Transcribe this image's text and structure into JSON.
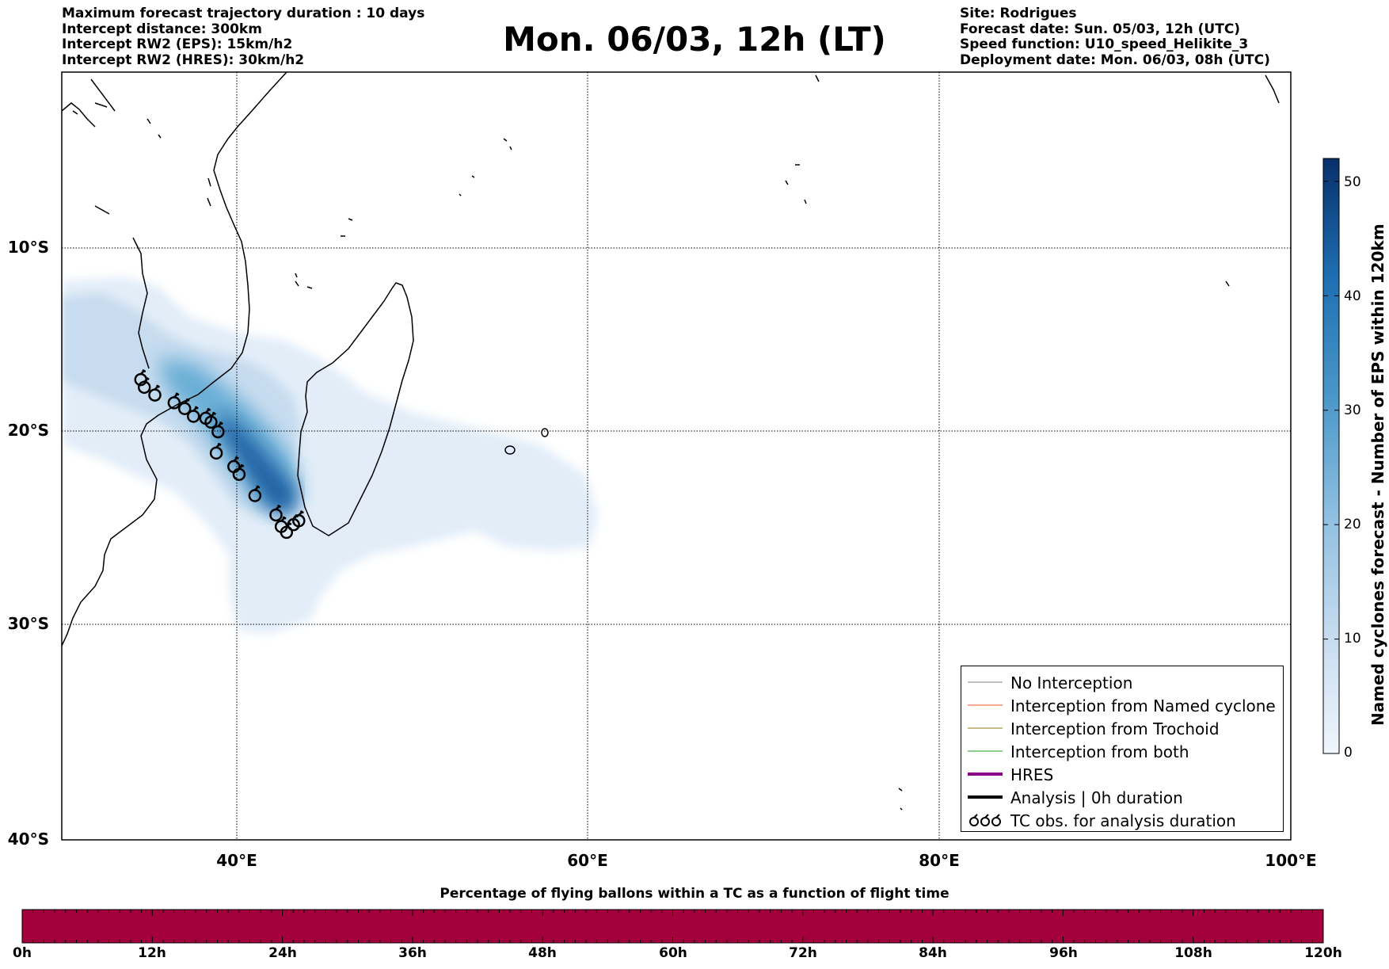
{
  "header_left": [
    "Maximum forecast trajectory duration : 10 days",
    "Intercept distance: 300km",
    "Intercept RW2 (EPS):  15km/h2",
    "Intercept RW2 (HRES): 30km/h2"
  ],
  "title": "Mon. 06/03, 12h (LT)",
  "header_right": [
    "Site: Rodrigues",
    "Forecast date: Sun. 05/03, 12h (UTC)",
    "Speed function: U10_speed_Helikite_3",
    "Deployment date: Mon. 06/03, 08h (UTC)"
  ],
  "map": {
    "lon_range": [
      30,
      100
    ],
    "lat_range": [
      -40,
      -0.3
    ],
    "lon_ticks": [
      {
        "value": 40,
        "label": "40°E"
      },
      {
        "value": 60,
        "label": "60°E"
      },
      {
        "value": 80,
        "label": "80°E"
      },
      {
        "value": 100,
        "label": "100°E"
      }
    ],
    "lat_ticks": [
      {
        "value": -10,
        "label": "10°S"
      },
      {
        "value": -20,
        "label": "20°S"
      },
      {
        "value": -30,
        "label": "30°S"
      },
      {
        "value": -40,
        "label": "40°S"
      }
    ],
    "tc_obs_track": [
      [
        34.5,
        -16.2
      ],
      [
        34.7,
        -16.6
      ],
      [
        35.3,
        -17.0
      ],
      [
        36.4,
        -17.4
      ],
      [
        37.0,
        -17.7
      ],
      [
        37.5,
        -18.1
      ],
      [
        38.2,
        -18.2
      ],
      [
        38.5,
        -18.4
      ],
      [
        38.9,
        -18.9
      ],
      [
        38.8,
        -20.0
      ],
      [
        39.8,
        -20.7
      ],
      [
        40.1,
        -21.1
      ],
      [
        41.0,
        -22.2
      ],
      [
        42.2,
        -23.2
      ],
      [
        42.5,
        -23.8
      ],
      [
        42.8,
        -24.1
      ],
      [
        43.2,
        -23.7
      ],
      [
        43.5,
        -23.5
      ]
    ]
  },
  "legend": [
    {
      "label": "No Interception",
      "color": "#808080",
      "style": "thin"
    },
    {
      "label": "Interception from Named cyclone",
      "color": "#e8541c",
      "style": "thin"
    },
    {
      "label": "Interception from Trochoid",
      "color": "#8c7a10",
      "style": "thin"
    },
    {
      "label": "Interception from both",
      "color": "#1a9a1a",
      "style": "thin"
    },
    {
      "label": "HRES",
      "color": "#8b008b",
      "style": "thick"
    },
    {
      "label": "Analysis | 0h duration",
      "color": "#000000",
      "style": "thick"
    },
    {
      "label": "TC obs. for analysis duration",
      "color": "#000000",
      "style": "tc"
    }
  ],
  "colorbar": {
    "title": "Named cyclones forecast - Number of EPS within 120km",
    "min": 0,
    "max": 52,
    "ticks": [
      "0",
      "10",
      "20",
      "30",
      "40",
      "50"
    ],
    "colors": [
      "#e6f0fa",
      "#084594"
    ]
  },
  "flight_bar": {
    "title": "Percentage of flying ballons within a TC as a function of flight time",
    "fill_color": "#a3003c",
    "ticks": [
      "0h",
      "12h",
      "24h",
      "36h",
      "48h",
      "60h",
      "72h",
      "84h",
      "96h",
      "108h",
      "120h"
    ]
  }
}
